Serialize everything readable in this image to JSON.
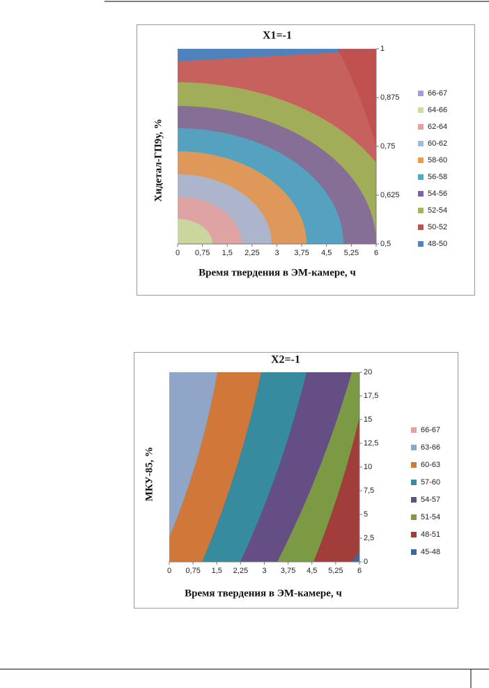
{
  "chart_data": [
    {
      "type": "contour",
      "title": "X1=-1",
      "x_label": "Время твердения в ЭМ-камере, ч",
      "y_label": "Хидетал-ГП9у, %",
      "xlim": [
        0,
        6
      ],
      "xticks": [
        0,
        {
          "value": 0.75,
          "label": "0,75"
        },
        {
          "value": 1.5,
          "label": "1,5"
        },
        {
          "value": 2.25,
          "label": "2,25"
        },
        3,
        {
          "value": 3.75,
          "label": "3,75"
        },
        {
          "value": 4.5,
          "label": "4,5"
        },
        {
          "value": 5.25,
          "label": "5,25"
        },
        6
      ],
      "ylim": [
        0.5,
        1
      ],
      "yticks": [
        {
          "value": 0.5,
          "label": "0,5"
        },
        {
          "value": 0.625,
          "label": "0,625"
        },
        {
          "value": 0.75,
          "label": "0,75"
        },
        {
          "value": 0.875,
          "label": "0,875"
        },
        1
      ],
      "legend": [
        {
          "name": "66-67",
          "color": "#a99bd4"
        },
        {
          "name": "64-66",
          "color": "#c6df9c"
        },
        {
          "name": "62-64",
          "color": "#e8a09c"
        },
        {
          "name": "60-62",
          "color": "#a3badf"
        },
        {
          "name": "58-60",
          "color": "#f79646"
        },
        {
          "name": "56-58",
          "color": "#4bacc6"
        },
        {
          "name": "54-56",
          "color": "#8064a2"
        },
        {
          "name": "52-54",
          "color": "#9bbb59"
        },
        {
          "name": "50-52",
          "color": "#c0504d"
        },
        {
          "name": "48-50",
          "color": "#4f81bd"
        }
      ]
    },
    {
      "type": "contour",
      "title": "X2=-1",
      "x_label": "Время твердения в ЭМ-камере, ч",
      "y_label": "МКУ-85, %",
      "xlim": [
        0,
        6
      ],
      "xticks": [
        0,
        {
          "value": 0.75,
          "label": "0,75"
        },
        {
          "value": 1.5,
          "label": "1,5"
        },
        {
          "value": 2.25,
          "label": "2,25"
        },
        3,
        {
          "value": 3.75,
          "label": "3,75"
        },
        {
          "value": 4.5,
          "label": "4,5"
        },
        {
          "value": 5.25,
          "label": "5,25"
        },
        6
      ],
      "ylim": [
        0,
        20
      ],
      "yticks": [
        0,
        {
          "value": 2.5,
          "label": "2,5"
        },
        5,
        {
          "value": 7.5,
          "label": "7,5"
        },
        10,
        {
          "value": 12.5,
          "label": "12,5"
        },
        15,
        {
          "value": 17.5,
          "label": "17,5"
        },
        20
      ],
      "legend": [
        {
          "name": "66-67",
          "color": "#e6a19d"
        },
        {
          "name": "63-66",
          "color": "#8fa6c8"
        },
        {
          "name": "60-63",
          "color": "#d0783a"
        },
        {
          "name": "57-60",
          "color": "#378b9e"
        },
        {
          "name": "54-57",
          "color": "#654e84"
        },
        {
          "name": "51-54",
          "color": "#7c9a43"
        },
        {
          "name": "48-51",
          "color": "#a13d3a"
        },
        {
          "name": "45-48",
          "color": "#3a68a2"
        }
      ]
    }
  ]
}
